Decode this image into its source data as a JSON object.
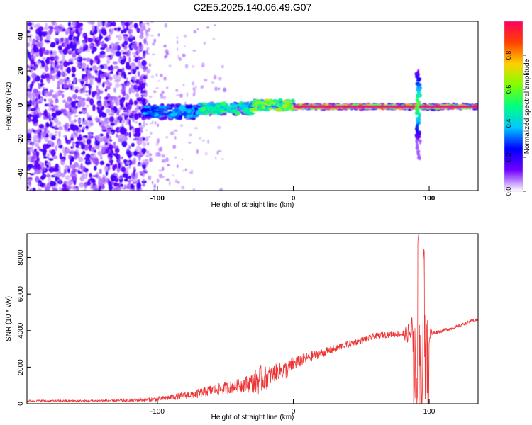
{
  "figure": {
    "title": "C2E5.2025.140.06.49.G07"
  },
  "chart_data": [
    {
      "type": "heatmap",
      "xlabel": "Height of straight line (km)",
      "ylabel": "Frequency (Hz)",
      "xlim": [
        -196,
        136
      ],
      "ylim": [
        -50,
        49
      ],
      "xticks": [
        -100,
        0,
        100
      ],
      "yticks": [
        -40,
        -20,
        0,
        20,
        40
      ],
      "colorbar": {
        "label": "Normalized spectral amplitude",
        "range": [
          0,
          1
        ],
        "ticks": [
          0.0,
          0.2,
          0.4,
          0.6,
          0.8
        ],
        "tick_labels": [
          "0.0",
          "0.2",
          "0.4",
          "0.6",
          "0.8"
        ],
        "colors": [
          "#ffffff",
          "#7000ff",
          "#0000ff",
          "#00c8ff",
          "#00ff80",
          "#80ff00",
          "#ffd000",
          "#ff4000",
          "#ff0060"
        ]
      },
      "features": {
        "noise_region_x": [
          -196,
          -108
        ],
        "carrier_segments": [
          {
            "x": [
              -110,
              -70
            ],
            "y": -4,
            "amp": 0.4
          },
          {
            "x": [
              -70,
              -30
            ],
            "y": -2,
            "amp": 0.55
          },
          {
            "x": [
              -30,
              0
            ],
            "y": 0,
            "amp": 0.7
          },
          {
            "x": [
              0,
              136
            ],
            "y": -1,
            "amp": 0.95
          }
        ],
        "burst_x": 92,
        "burst_freq_range": [
          -32,
          20
        ]
      }
    },
    {
      "type": "line",
      "xlabel": "Height of straight line (km)",
      "ylabel": "SNR (10 * v/v)",
      "xlim": [
        -196,
        136
      ],
      "ylim": [
        0,
        9300
      ],
      "xticks": [
        -100,
        0,
        100
      ],
      "yticks": [
        0,
        2000,
        4000,
        6000,
        8000
      ],
      "line_color": "#ee3333",
      "series": [
        {
          "x": [
            -196,
            -150,
            -120,
            -100,
            -90,
            -80,
            -70,
            -60,
            -50,
            -40,
            -30,
            -25,
            -20,
            -15,
            -10,
            -5,
            0,
            10,
            20,
            30,
            40,
            50,
            60,
            70,
            80,
            85,
            88,
            90,
            92,
            94,
            96,
            98,
            100,
            102,
            104,
            110,
            120,
            130,
            136
          ],
          "values": [
            150,
            150,
            180,
            250,
            350,
            450,
            550,
            750,
            850,
            1000,
            1150,
            1300,
            1400,
            1650,
            1800,
            1850,
            2200,
            2500,
            2750,
            3000,
            3250,
            3450,
            3700,
            3800,
            3800,
            3850,
            4000,
            4800,
            9300,
            400,
            8600,
            6300,
            3800,
            3850,
            3900,
            4000,
            4200,
            4500,
            4600
          ],
          "noise_amplitude": [
            60,
            60,
            80,
            120,
            160,
            200,
            260,
            300,
            330,
            380,
            550,
            800,
            650,
            500,
            450,
            500,
            420,
            300,
            250,
            220,
            200,
            180,
            170,
            170,
            180,
            600,
            1200,
            2000,
            0,
            0,
            0,
            900,
            600,
            200,
            120,
            100,
            90,
            80,
            80
          ]
        }
      ]
    }
  ]
}
